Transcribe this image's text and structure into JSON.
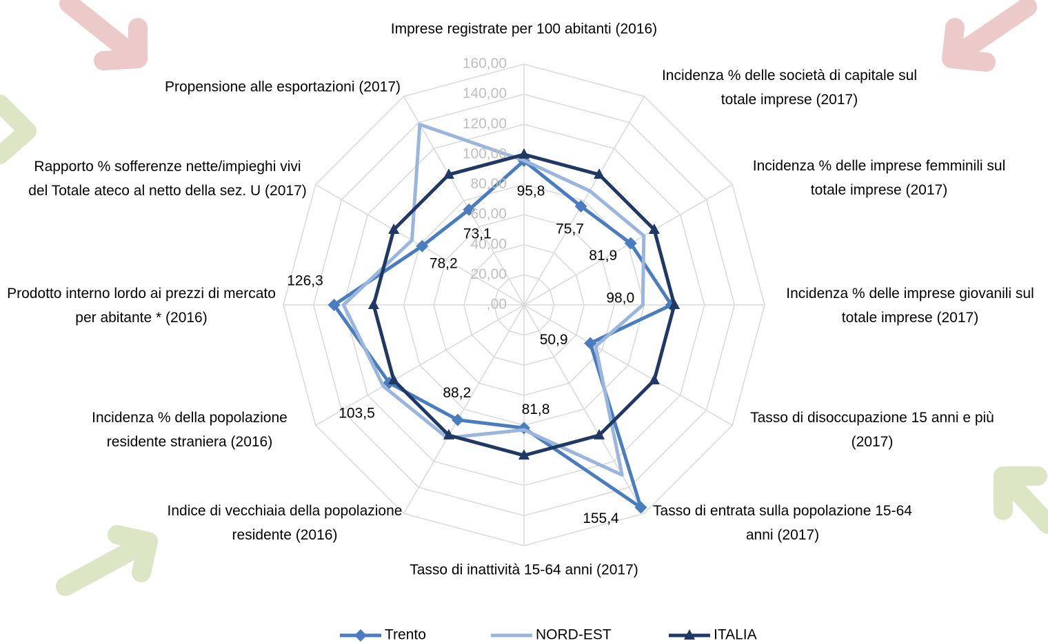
{
  "chart_data": {
    "type": "radar",
    "categories": [
      "Imprese registrate per 100 abitanti (2016)",
      "Incidenza % delle società di capitale sul totale imprese (2017)",
      "Incidenza % delle imprese femminili sul totale imprese (2017)",
      "Incidenza % delle imprese giovanili sul totale imprese (2017)",
      "Tasso di disoccupazione 15 anni e più (2017)",
      "Tasso di entrata sulla popolazione 15-64 anni (2017)",
      "Tasso di inattività 15-64 anni (2017)",
      "Indice di vecchiaia della popolazione residente (2016)",
      "Incidenza % della popolazione residente straniera (2016)",
      "Prodotto interno lordo ai prezzi di mercato per abitante * (2016)",
      "Rapporto % sofferenze nette/impieghi vivi del Totale ateco al netto della sez. U (2017)",
      "Propensione alle esportazioni (2017)"
    ],
    "series": [
      {
        "name": "Trento",
        "color": "#4a7dbf",
        "marker": "diamond",
        "values": [
          95.8,
          75.7,
          81.9,
          98.0,
          50.9,
          155.4,
          81.8,
          88.2,
          103.5,
          126.3,
          78.2,
          73.1
        ],
        "value_labels": [
          "95,8",
          "75,7",
          "81,9",
          "98,0",
          "50,9",
          "155,4",
          "81,8",
          "88,2",
          "103,5",
          "126,3",
          "78,2",
          "73,1"
        ]
      },
      {
        "name": "NORD-EST",
        "color": "#9ab5de",
        "marker": "none",
        "values": [
          96,
          87.5,
          92,
          79,
          55,
          130.5,
          83,
          102,
          108,
          120,
          86,
          138.5
        ]
      },
      {
        "name": "ITALIA",
        "color": "#1f3864",
        "marker": "triangle",
        "values": [
          100,
          100,
          100,
          100,
          100,
          100,
          100,
          100,
          100,
          100,
          100,
          100
        ]
      }
    ],
    "ylim": [
      0,
      160
    ],
    "yticks": [
      {
        "value": 0,
        "label": ",00"
      },
      {
        "value": 20,
        "label": "20,00"
      },
      {
        "value": 40,
        "label": "40,00"
      },
      {
        "value": 60,
        "label": "60,00"
      },
      {
        "value": 80,
        "label": "80,00"
      },
      {
        "value": 100,
        "label": "100,00"
      },
      {
        "value": 120,
        "label": "120,00"
      },
      {
        "value": 140,
        "label": "140,00"
      },
      {
        "value": 160,
        "label": "160,00"
      }
    ],
    "grid": true,
    "legend": "bottom"
  }
}
